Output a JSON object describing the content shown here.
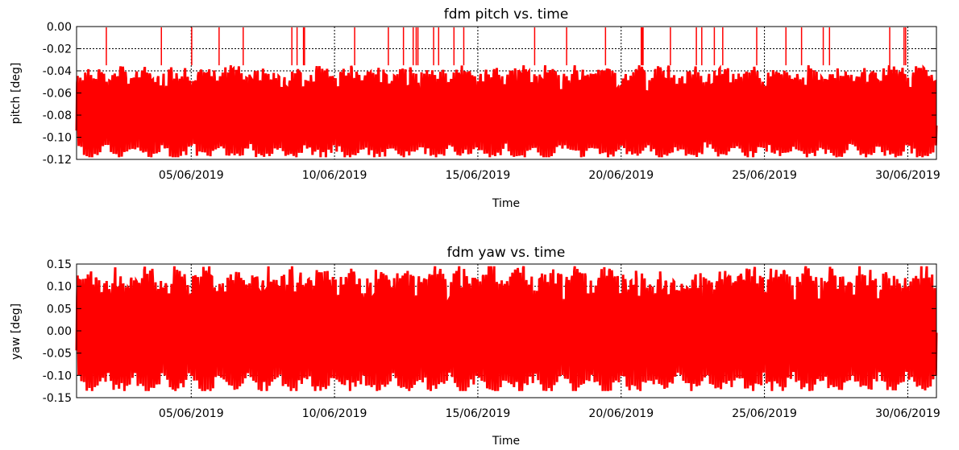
{
  "colors": {
    "series": "#ff0000",
    "axis": "#000000",
    "grid": "#000000",
    "background": "#ffffff"
  },
  "chart_data": [
    {
      "type": "line",
      "title": "fdm pitch vs. time",
      "xlabel": "Time",
      "ylabel": "pitch [deg]",
      "ylim": [
        -0.12,
        0.0
      ],
      "yticks": [
        0.0,
        -0.02,
        -0.04,
        -0.06,
        -0.08,
        -0.1,
        -0.12
      ],
      "ytick_labels": [
        "0.00",
        "-0.02",
        "-0.04",
        "-0.06",
        "-0.08",
        "-0.10",
        "-0.12"
      ],
      "xlim": [
        "2019-06-01",
        "2019-07-01"
      ],
      "xticks": [
        "2019-06-05",
        "2019-06-10",
        "2019-06-15",
        "2019-06-20",
        "2019-06-25",
        "2019-06-30"
      ],
      "xtick_labels": [
        "05/06/2019",
        "10/06/2019",
        "15/06/2019",
        "20/06/2019",
        "25/06/2019",
        "30/06/2019"
      ],
      "grid": "dotted",
      "series": [
        {
          "color": "#ff0000",
          "band_upper": -0.035,
          "band_lower": -0.118,
          "mean": -0.065,
          "occasional_spikes_to": 0.0
        }
      ]
    },
    {
      "type": "line",
      "title": "fdm yaw vs. time",
      "xlabel": "Time",
      "ylabel": "yaw [deg]",
      "ylim": [
        -0.15,
        0.15
      ],
      "yticks": [
        0.15,
        0.1,
        0.05,
        0.0,
        -0.05,
        -0.1,
        -0.15
      ],
      "ytick_labels": [
        "0.15",
        "0.10",
        "0.05",
        "0.00",
        "-0.05",
        "-0.10",
        "-0.15"
      ],
      "xlim": [
        "2019-06-01",
        "2019-07-01"
      ],
      "xticks": [
        "2019-06-05",
        "2019-06-10",
        "2019-06-15",
        "2019-06-20",
        "2019-06-25",
        "2019-06-30"
      ],
      "xtick_labels": [
        "05/06/2019",
        "10/06/2019",
        "15/06/2019",
        "20/06/2019",
        "25/06/2019",
        "30/06/2019"
      ],
      "grid": "dotted",
      "series": [
        {
          "color": "#ff0000",
          "band_upper": 0.145,
          "band_lower": -0.135,
          "mean": 0.0
        }
      ]
    }
  ]
}
